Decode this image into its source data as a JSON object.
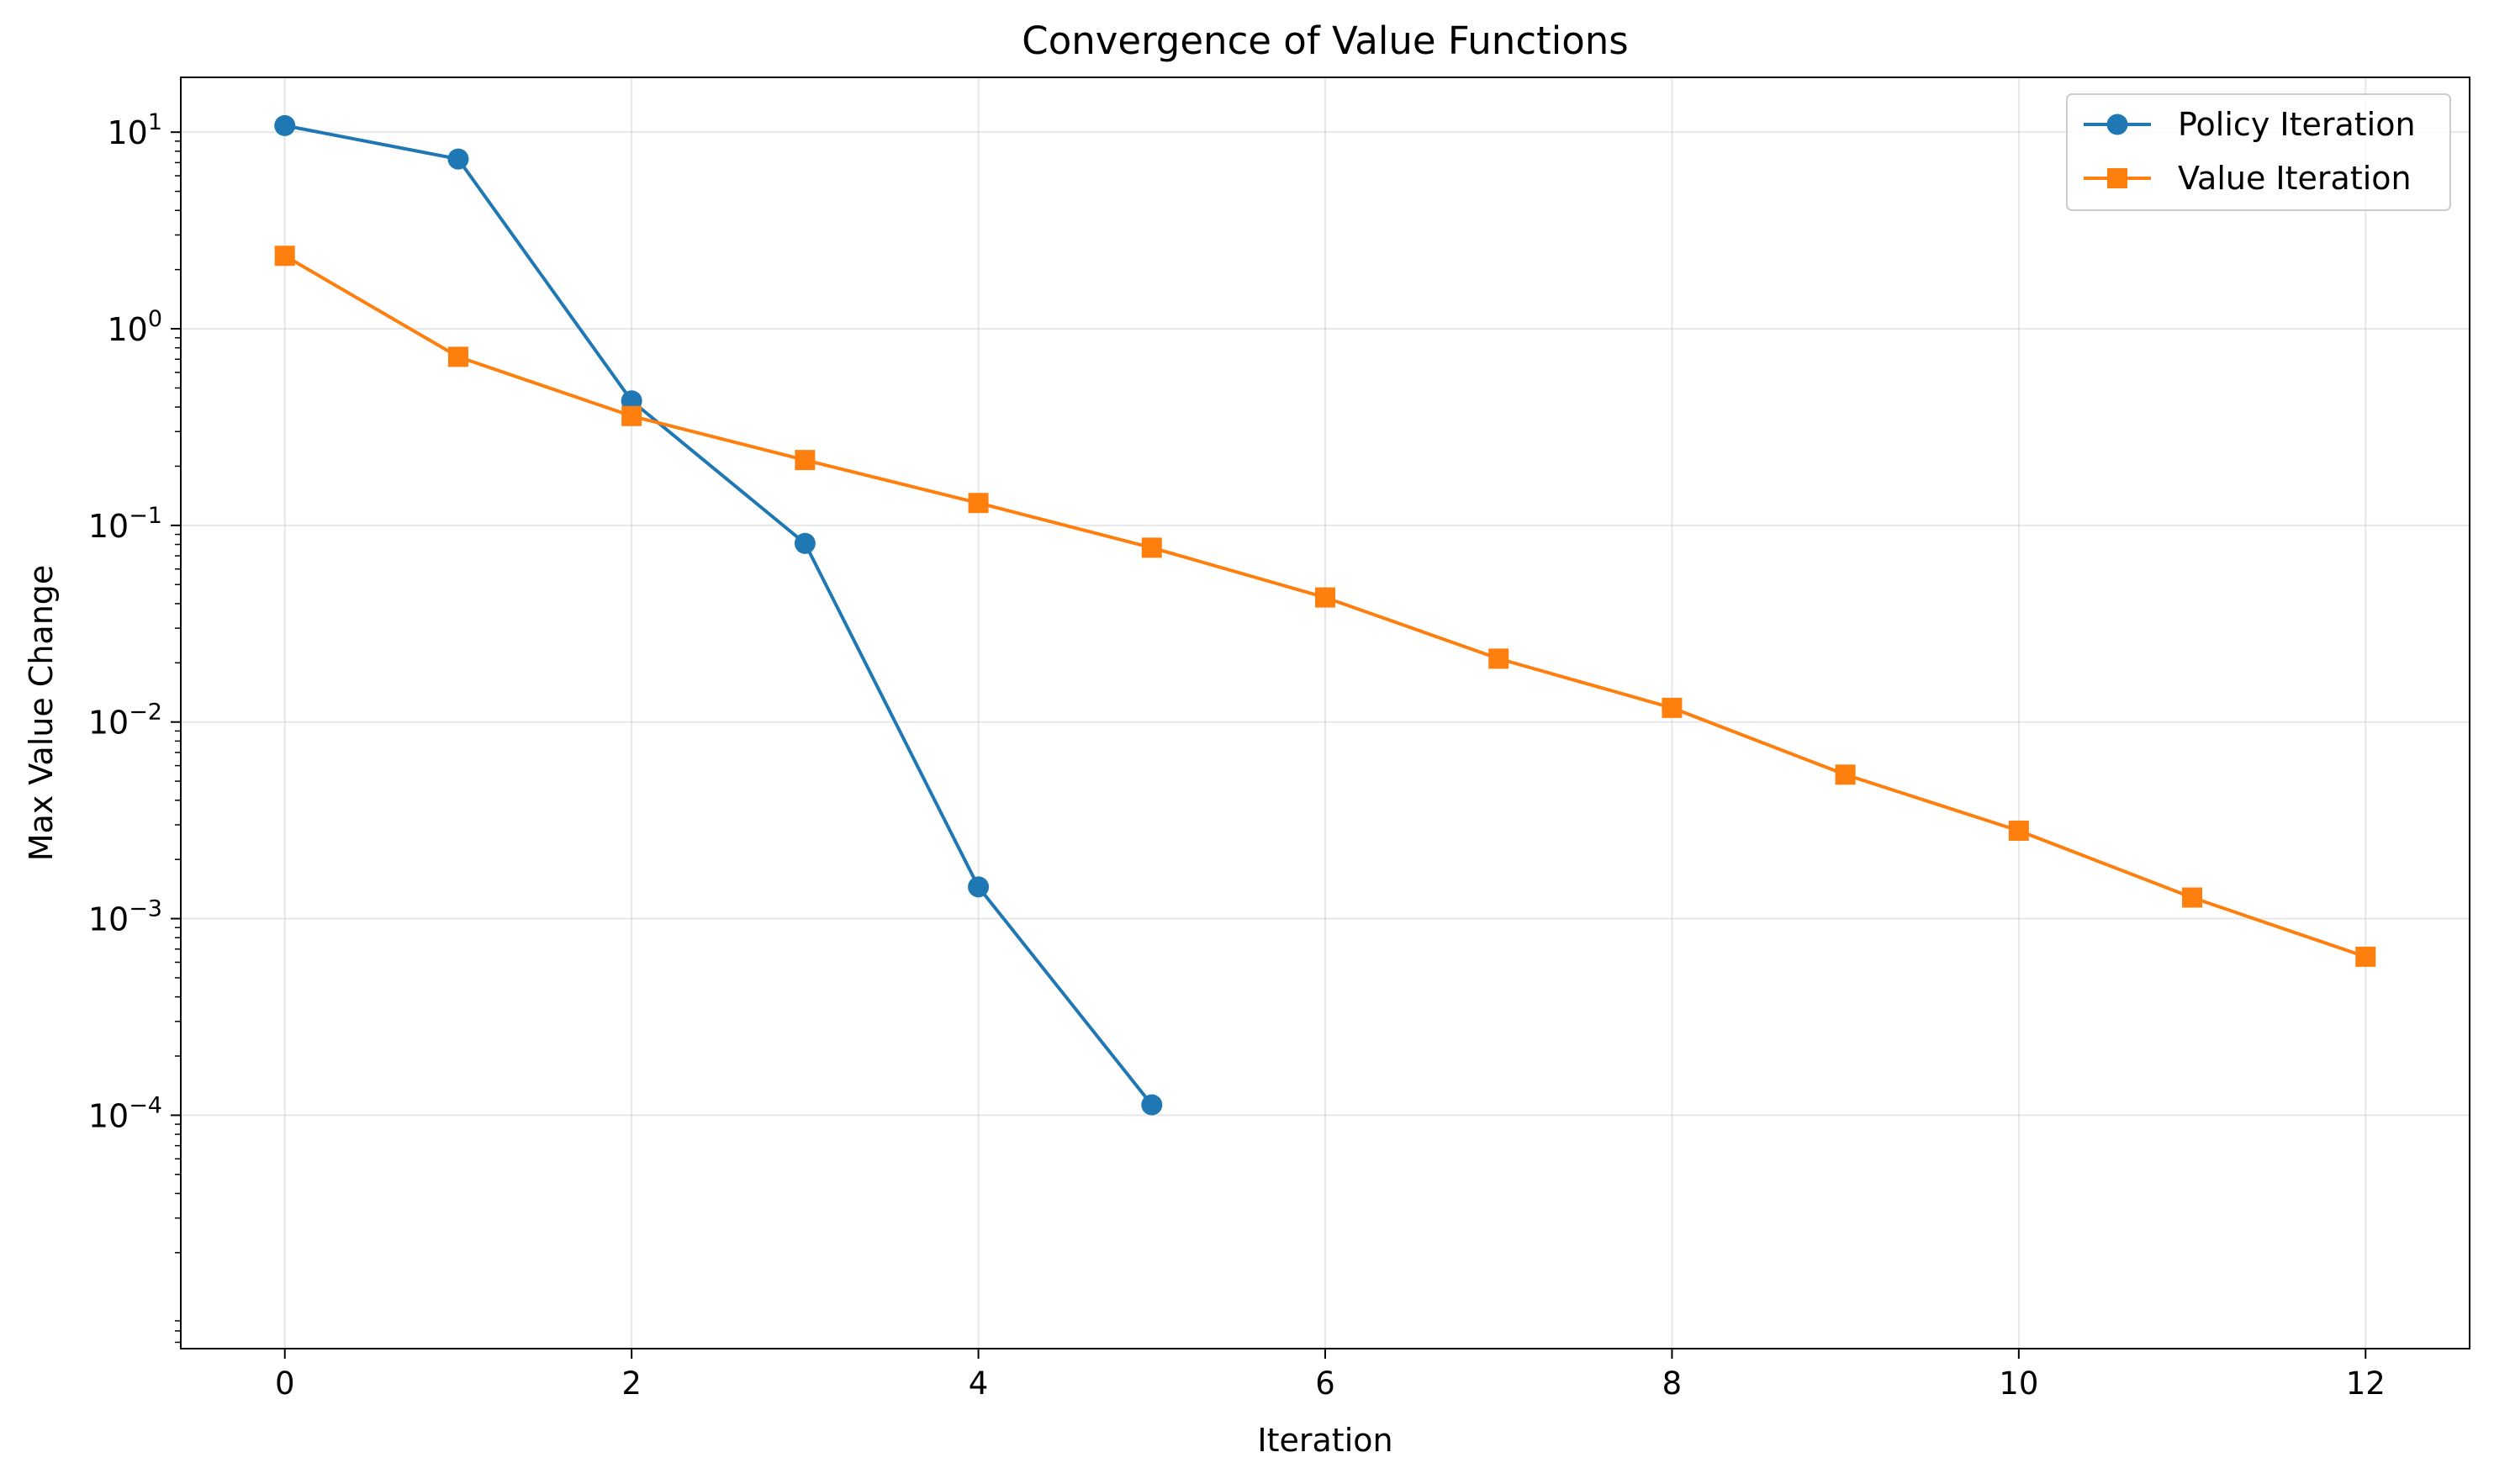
{
  "chart_data": {
    "type": "line",
    "title": "Convergence of Value Functions",
    "xlabel": "Iteration",
    "ylabel": "Max Value Change",
    "yscale": "log",
    "xlim": [
      -0.6,
      12.6
    ],
    "ylim": [
      6.5e-06,
      19
    ],
    "grid": true,
    "legend_position": "top-right",
    "x_ticks": [
      0,
      2,
      4,
      6,
      8,
      10,
      12
    ],
    "y_ticks": [
      {
        "value": 10,
        "base": "10",
        "exponent": "1"
      },
      {
        "value": 1,
        "base": "10",
        "exponent": "0"
      },
      {
        "value": 0.1,
        "base": "10",
        "exponent": "−1"
      },
      {
        "value": 0.01,
        "base": "10",
        "exponent": "−2"
      },
      {
        "value": 0.001,
        "base": "10",
        "exponent": "−3"
      },
      {
        "value": 0.0001,
        "base": "10",
        "exponent": "−4"
      }
    ],
    "series": [
      {
        "name": "Policy Iteration",
        "color": "#1f77b4",
        "marker": "circle",
        "x": [
          0,
          1,
          2,
          3,
          4,
          5
        ],
        "y": [
          10.8,
          7.3,
          0.43,
          0.081,
          0.00145,
          0.000113
        ]
      },
      {
        "name": "Value Iteration",
        "color": "#ff7f0e",
        "marker": "square",
        "x": [
          0,
          1,
          2,
          3,
          4,
          5,
          6,
          7,
          8,
          9,
          10,
          11,
          12
        ],
        "y": [
          2.35,
          0.72,
          0.36,
          0.215,
          0.13,
          0.077,
          0.043,
          0.021,
          0.0118,
          0.0054,
          0.0028,
          0.00128,
          0.00064
        ]
      }
    ]
  }
}
